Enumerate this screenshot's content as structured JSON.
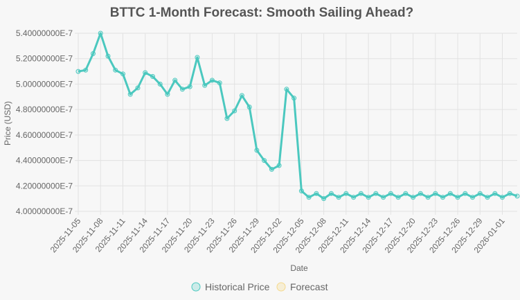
{
  "chart_data": {
    "type": "line",
    "title": "BTTC 1-Month Forecast: Smooth Sailing Ahead?",
    "xlabel": "Date",
    "ylabel": "Price (USD)",
    "ylim": [
      4e-07,
      5.4e-07
    ],
    "y_ticks": [
      "4.00000000E-7",
      "4.20000000E-7",
      "4.40000000E-7",
      "4.60000000E-7",
      "4.80000000E-7",
      "5.00000000E-7",
      "5.20000000E-7",
      "5.40000000E-7"
    ],
    "x_ticks": [
      "2025-11-05",
      "2025-11-08",
      "2025-11-11",
      "2025-11-14",
      "2025-11-17",
      "2025-11-20",
      "2025-11-23",
      "2025-11-26",
      "2025-11-29",
      "2025-12-02",
      "2025-12-05",
      "2025-12-08",
      "2025-12-11",
      "2025-12-14",
      "2025-12-17",
      "2025-12-20",
      "2025-12-23",
      "2025-12-26",
      "2025-12-29",
      "2026-01-01"
    ],
    "grid": true,
    "legend_position": "bottom",
    "x_start": "2025-11-05",
    "x_end": "2026-01-03",
    "series": [
      {
        "name": "Historical Price",
        "color": "#4bc8bf",
        "values": [
          5.1e-07,
          5.11e-07,
          5.24e-07,
          5.4e-07,
          5.22e-07,
          5.11e-07,
          5.08e-07,
          4.92e-07,
          4.97e-07,
          5.09e-07,
          5.06e-07,
          5e-07,
          4.92e-07,
          5.03e-07,
          4.96e-07,
          4.98e-07,
          5.21e-07,
          4.99e-07,
          5.03e-07,
          5.01e-07,
          4.73e-07,
          4.79e-07,
          4.91e-07,
          4.82e-07,
          4.48e-07,
          4.4e-07,
          4.33e-07,
          4.36e-07,
          4.96e-07,
          4.89e-07,
          4.16e-07,
          4.11e-07,
          4.14e-07,
          4.1e-07,
          4.14e-07,
          4.11e-07,
          4.14e-07,
          4.11e-07,
          4.14e-07,
          4.11e-07,
          4.14e-07,
          4.11e-07,
          4.14e-07,
          4.11e-07,
          4.14e-07,
          4.11e-07,
          4.14e-07,
          4.11e-07,
          4.14e-07,
          4.11e-07,
          4.14e-07,
          4.11e-07,
          4.14e-07,
          4.11e-07,
          4.14e-07,
          4.11e-07,
          4.14e-07,
          4.11e-07,
          4.14e-07,
          4.12e-07
        ]
      },
      {
        "name": "Forecast",
        "color": "#f5d98c",
        "values": []
      }
    ]
  }
}
